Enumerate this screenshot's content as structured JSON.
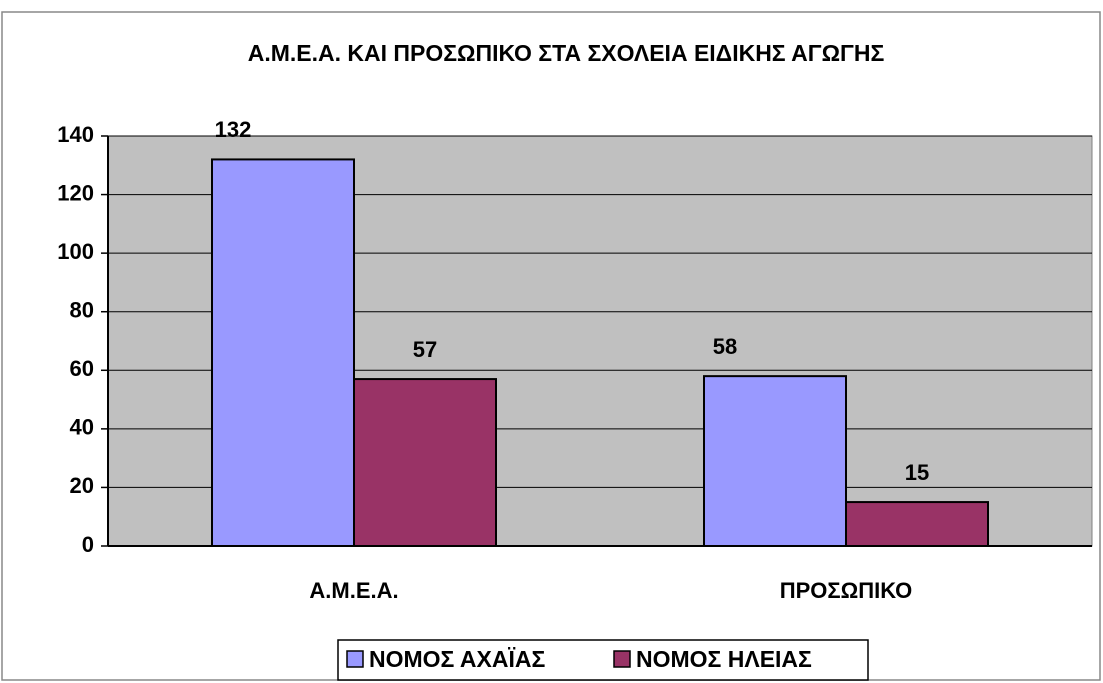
{
  "chart_data": {
    "type": "bar",
    "title": "Α.Μ.Ε.Α. ΚΑΙ ΠΡΟΣΩΠΙΚΟ ΣΤΑ ΣΧΟΛΕΙΑ ΕΙΔΙΚΗΣ ΑΓΩΓΗΣ",
    "categories": [
      "Α.Μ.Ε.Α.",
      "ΠΡΟΣΩΠΙΚΟ"
    ],
    "series": [
      {
        "name": "ΝΟΜΟΣ ΑΧΑΪΑΣ",
        "color": "#9999ff",
        "values": [
          132,
          58
        ]
      },
      {
        "name": "ΝΟΜΟΣ ΗΛΕΙΑΣ",
        "color": "#993366",
        "values": [
          57,
          15
        ]
      }
    ],
    "ylim": [
      0,
      140
    ],
    "yticks": [
      0,
      20,
      40,
      60,
      80,
      100,
      120,
      140
    ],
    "grid": true,
    "legend": "bottom"
  }
}
